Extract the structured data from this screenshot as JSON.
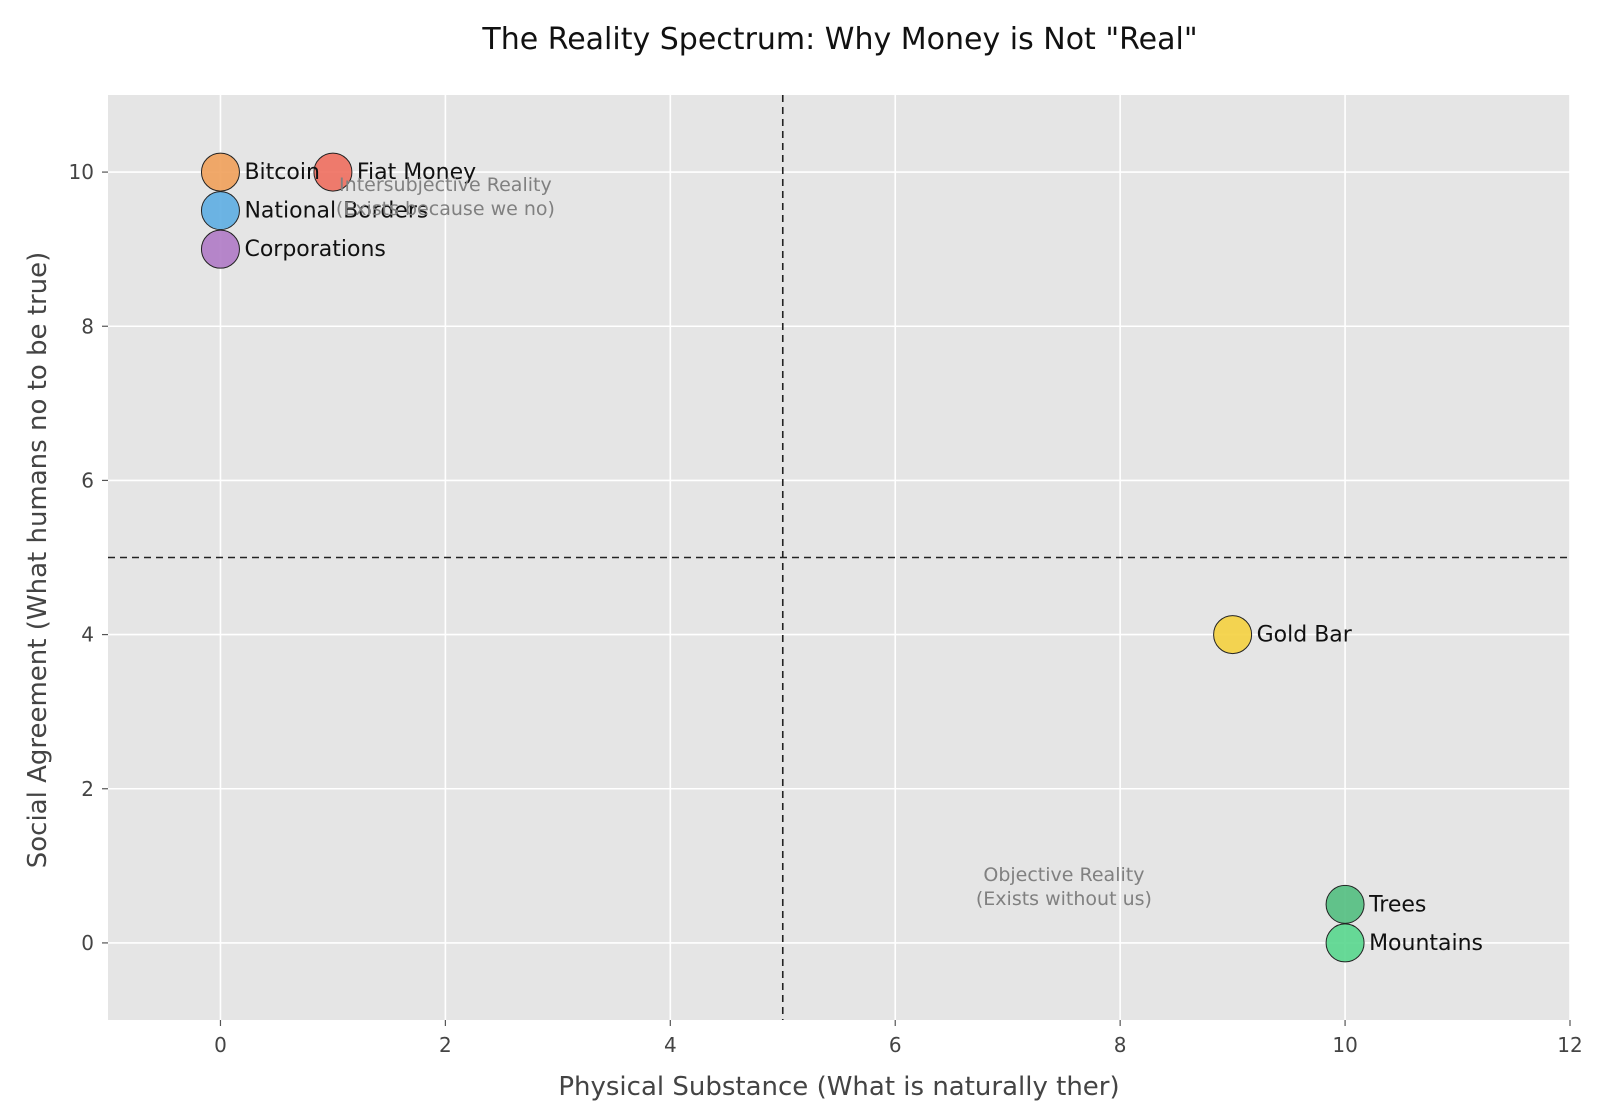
{
  "chart_data": {
    "type": "scatter",
    "title": "The Reality Spectrum: Why Money is Not \"Real\"",
    "xlabel": "Physical Substance (What is naturally ther)",
    "ylabel": "Social Agreement (What humans no to be true)",
    "xlim": [
      -1,
      12
    ],
    "ylim": [
      -1,
      11
    ],
    "xticks": [
      0,
      2,
      4,
      6,
      8,
      10,
      12
    ],
    "yticks": [
      0,
      2,
      4,
      6,
      8,
      10
    ],
    "grid": true,
    "reference_lines": {
      "x": 5,
      "y": 5,
      "style": "dashed"
    },
    "points": [
      {
        "label": "Bitcoin",
        "x": 0,
        "y": 10,
        "color": "#F0A05A"
      },
      {
        "label": "Fiat Money",
        "x": 1,
        "y": 10,
        "color": "#EE6E5E"
      },
      {
        "label": "National Borders",
        "x": 0,
        "y": 9.5,
        "color": "#5DADE2"
      },
      {
        "label": "Corporations",
        "x": 0,
        "y": 9,
        "color": "#AF7AC5"
      },
      {
        "label": "Gold Bar",
        "x": 9,
        "y": 4,
        "color": "#F4D03F"
      },
      {
        "label": "Trees",
        "x": 10,
        "y": 0.5,
        "color": "#52BE80"
      },
      {
        "label": "Mountains",
        "x": 10,
        "y": 0,
        "color": "#58D68D"
      }
    ],
    "annotations": [
      {
        "lines": [
          "Intersubjective Reality",
          "(Exists because we no)"
        ],
        "x": 2,
        "y": 9.7
      },
      {
        "lines": [
          "Objective Reality",
          "(Exists without us)"
        ],
        "x": 7.5,
        "y": 0.75
      }
    ]
  }
}
